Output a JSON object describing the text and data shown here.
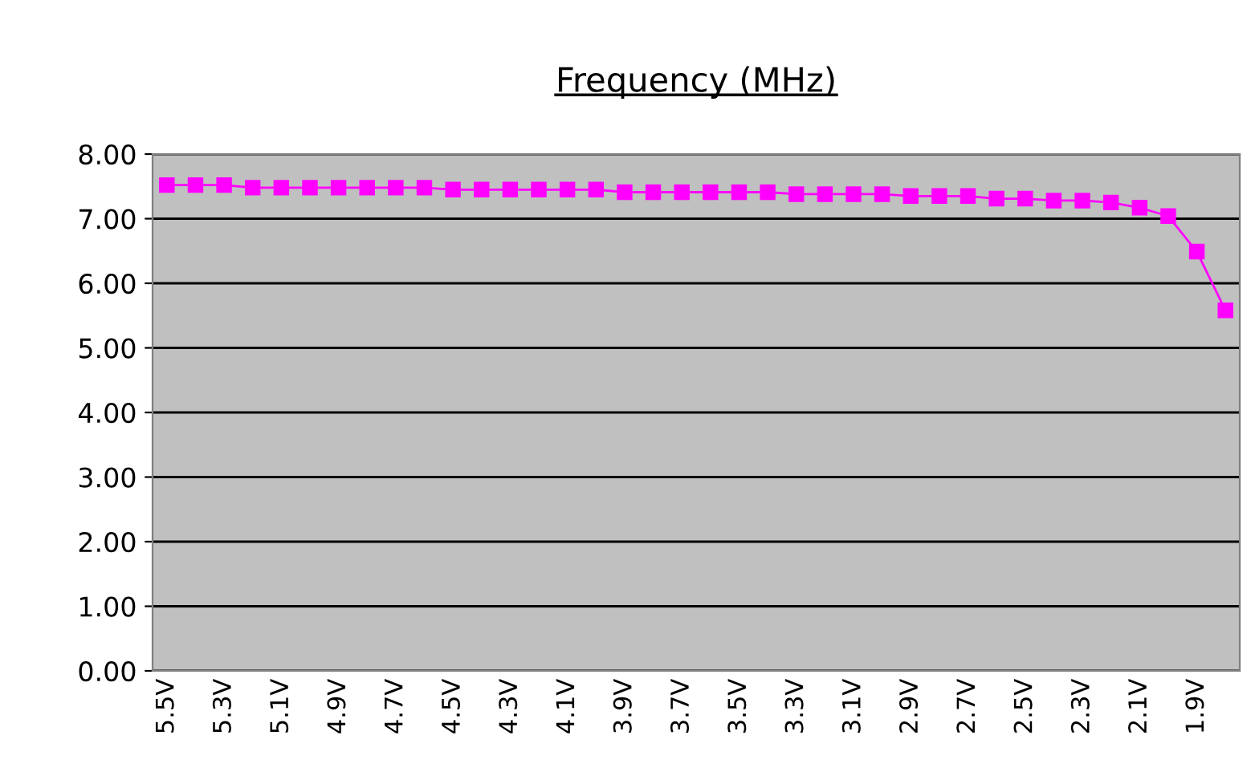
{
  "chart_data": {
    "type": "line",
    "title": "Frequency (MHz)",
    "categories": [
      "5.5V",
      null,
      "5.3V",
      null,
      "5.1V",
      null,
      "4.9V",
      null,
      "4.7V",
      null,
      "4.5V",
      null,
      "4.3V",
      null,
      "4.1V",
      null,
      "3.9V",
      null,
      "3.7V",
      null,
      "3.5V",
      null,
      "3.3V",
      null,
      "3.1V",
      null,
      "2.9V",
      null,
      "2.7V",
      null,
      "2.5V",
      null,
      "2.3V",
      null,
      "2.1V",
      null,
      "1.9V",
      null
    ],
    "series": [
      {
        "color": "#ff00ff",
        "values": [
          7.52,
          7.52,
          7.52,
          7.48,
          7.48,
          7.48,
          7.48,
          7.48,
          7.48,
          7.48,
          7.45,
          7.45,
          7.45,
          7.45,
          7.45,
          7.45,
          7.41,
          7.41,
          7.41,
          7.41,
          7.41,
          7.41,
          7.38,
          7.38,
          7.38,
          7.38,
          7.35,
          7.35,
          7.35,
          7.31,
          7.31,
          7.28,
          7.28,
          7.25,
          7.17,
          7.04,
          6.49,
          5.58
        ]
      }
    ],
    "ylim": [
      0,
      8
    ],
    "yticks": [
      {
        "value": 0,
        "label": "0.00"
      },
      {
        "value": 1,
        "label": "1.00"
      },
      {
        "value": 2,
        "label": "2.00"
      },
      {
        "value": 3,
        "label": "3.00"
      },
      {
        "value": 4,
        "label": "4.00"
      },
      {
        "value": 5,
        "label": "5.00"
      },
      {
        "value": 6,
        "label": "6.00"
      },
      {
        "value": 7,
        "label": "7.00"
      },
      {
        "value": 8,
        "label": "8.00"
      }
    ],
    "grid": "y",
    "marker": "square",
    "line_style": "solid"
  }
}
